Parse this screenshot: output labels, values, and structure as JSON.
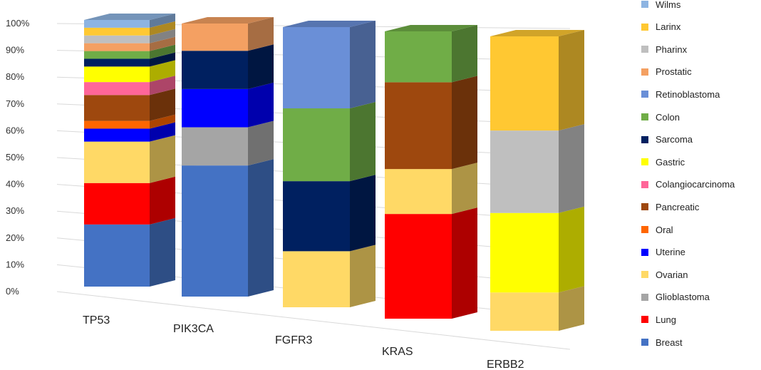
{
  "chart_data": {
    "type": "bar",
    "stacked": true,
    "three_d": true,
    "normalized_percent": true,
    "categories": [
      "TP53",
      "PIK3CA",
      "FGFR3",
      "KRAS",
      "ERBB2"
    ],
    "yticks": [
      "0%",
      "10%",
      "20%",
      "30%",
      "40%",
      "50%",
      "60%",
      "70%",
      "80%",
      "90%",
      "100%"
    ],
    "ylim": [
      0,
      100
    ],
    "grid": true,
    "legend_position": "right",
    "series": [
      {
        "name": "Breast",
        "color": "#4472C4",
        "values": [
          24,
          48,
          0,
          0,
          0
        ]
      },
      {
        "name": "Lung",
        "color": "#FF0000",
        "values": [
          16,
          0,
          0,
          35,
          0
        ]
      },
      {
        "name": "Glioblastoma",
        "color": "#A5A5A5",
        "values": [
          0,
          14,
          0,
          0,
          0
        ]
      },
      {
        "name": "Ovarian",
        "color": "#FFD966",
        "values": [
          16,
          0,
          20,
          15,
          13
        ]
      },
      {
        "name": "Uterine",
        "color": "#0000FF",
        "values": [
          5,
          14,
          0,
          0,
          0
        ]
      },
      {
        "name": "Oral",
        "color": "#FF6600",
        "values": [
          3,
          0,
          0,
          0,
          0
        ]
      },
      {
        "name": "Pancreatic",
        "color": "#9E480E",
        "values": [
          10,
          0,
          0,
          29,
          0
        ]
      },
      {
        "name": "Colangiocarcinoma",
        "color": "#FF6699",
        "values": [
          5,
          0,
          0,
          0,
          0
        ]
      },
      {
        "name": "Gastric",
        "color": "#FFFF00",
        "values": [
          6,
          0,
          0,
          0,
          27
        ]
      },
      {
        "name": "Sarcoma",
        "color": "#002060",
        "values": [
          3,
          14,
          25,
          0,
          0
        ]
      },
      {
        "name": "Colon",
        "color": "#70AD47",
        "values": [
          3,
          0,
          26,
          17,
          0
        ]
      },
      {
        "name": "Retinoblastoma",
        "color": "#6A8FD7",
        "values": [
          0,
          0,
          29,
          0,
          0
        ]
      },
      {
        "name": "Prostatic",
        "color": "#F4A062",
        "values": [
          3,
          10,
          0,
          0,
          0
        ]
      },
      {
        "name": "Pharinx",
        "color": "#BFBFBF",
        "values": [
          3,
          0,
          0,
          0,
          28
        ]
      },
      {
        "name": "Larinx",
        "color": "#FFC832",
        "values": [
          3,
          0,
          0,
          0,
          32
        ]
      },
      {
        "name": "Wilms",
        "color": "#8DB4E2",
        "values": [
          3,
          0,
          0,
          0,
          0
        ]
      }
    ]
  }
}
